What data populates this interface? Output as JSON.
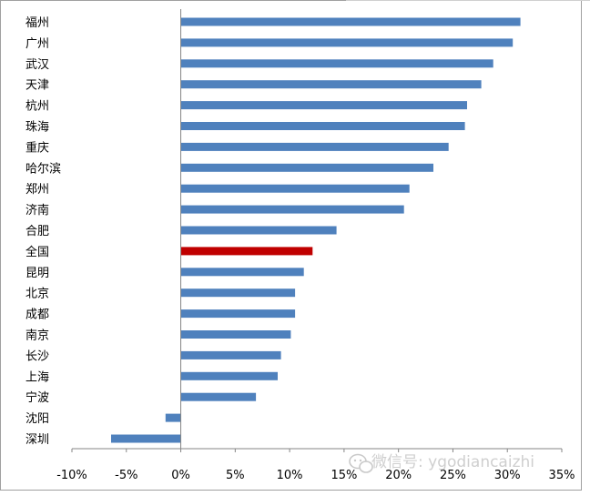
{
  "chart_data": {
    "type": "bar",
    "orientation": "horizontal",
    "categories": [
      "福州",
      "广州",
      "武汉",
      "天津",
      "杭州",
      "珠海",
      "重庆",
      "哈尔滨",
      "郑州",
      "济南",
      "合肥",
      "全国",
      "昆明",
      "北京",
      "成都",
      "南京",
      "长沙",
      "上海",
      "宁波",
      "沈阳",
      "深圳"
    ],
    "values": [
      31.2,
      30.5,
      28.7,
      27.6,
      26.3,
      26.1,
      24.6,
      23.2,
      21.0,
      20.5,
      14.3,
      12.1,
      11.3,
      10.5,
      10.5,
      10.1,
      9.2,
      8.9,
      6.9,
      -1.4,
      -6.4
    ],
    "highlight_category": "全国",
    "xlim": [
      -10,
      35
    ],
    "xticks": [
      "-10%",
      "-5%",
      "0%",
      "5%",
      "10%",
      "15%",
      "20%",
      "25%",
      "30%",
      "35%"
    ],
    "title": "",
    "xlabel": "",
    "ylabel": "",
    "grid": false,
    "legend": "none",
    "colors": {
      "bar": "#4f81bd",
      "highlight": "#c00000",
      "axis": "#868686",
      "frame": "#a0a0a0"
    }
  },
  "watermark": {
    "icon": "wechat-icon",
    "text": "微信号: ygodiancaizhi"
  }
}
